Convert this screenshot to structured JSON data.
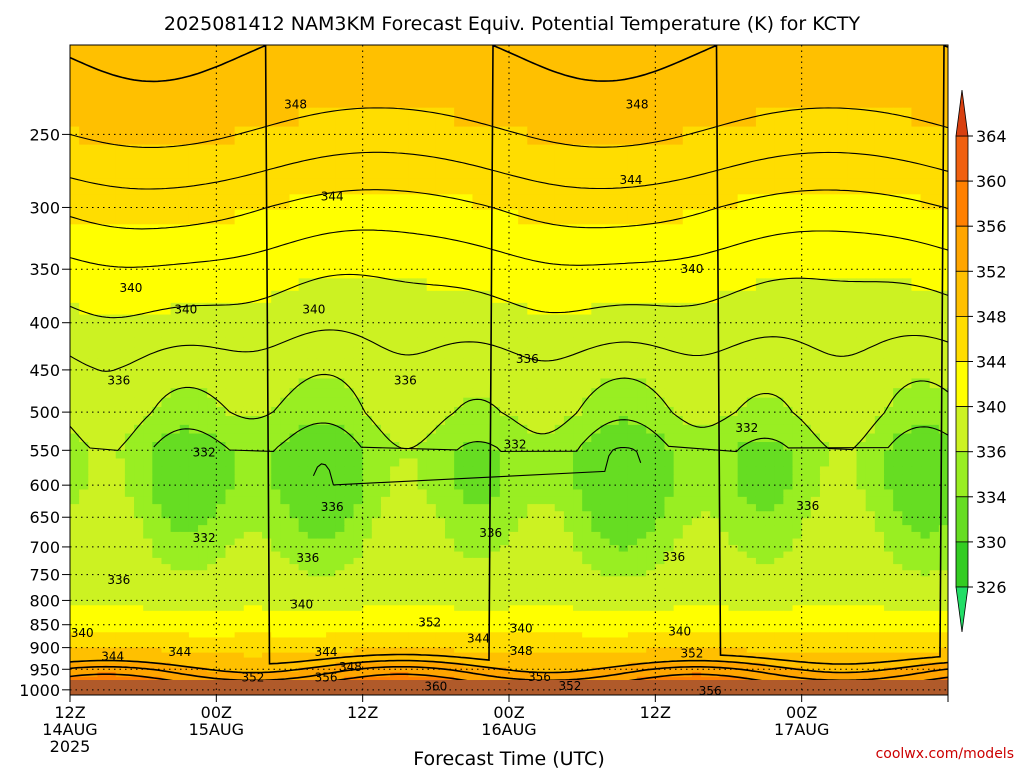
{
  "chart_data": {
    "type": "heatmap",
    "title": "2025081412 NAM3KM Forecast Equiv. Potential Temperature (K) for KCTY",
    "xlabel": "Forecast Time (UTC)",
    "ylabel": "",
    "credit": "coolwx.com/models",
    "x_hours": [
      0,
      72
    ],
    "x_ticks": [
      {
        "hour": 0,
        "line1": "12Z",
        "line2": "14AUG",
        "line3": "2025"
      },
      {
        "hour": 12,
        "line1": "00Z",
        "line2": "15AUG",
        "line3": ""
      },
      {
        "hour": 24,
        "line1": "12Z",
        "line2": "",
        "line3": ""
      },
      {
        "hour": 36,
        "line1": "00Z",
        "line2": "16AUG",
        "line3": ""
      },
      {
        "hour": 48,
        "line1": "12Z",
        "line2": "",
        "line3": ""
      },
      {
        "hour": 60,
        "line1": "00Z",
        "line2": "17AUG",
        "line3": ""
      }
    ],
    "y_pressure_range_hPa": [
      1013,
      200
    ],
    "y_log_scale": true,
    "y_ticks": [
      250,
      300,
      350,
      400,
      450,
      500,
      550,
      600,
      650,
      700,
      750,
      800,
      850,
      900,
      950,
      1000
    ],
    "grid": true,
    "colorbar": {
      "levels": [
        326,
        330,
        334,
        336,
        340,
        344,
        348,
        352,
        356,
        360,
        364
      ],
      "colors": [
        "#22dd66",
        "#33cc22",
        "#66dd22",
        "#99ee22",
        "#ccf222",
        "#ffff00",
        "#ffdd00",
        "#ffc000",
        "#ffa500",
        "#ff8000",
        "#f06010",
        "#d84010"
      ]
    },
    "profile_by_pressure": [
      {
        "p": 200,
        "thetae": 350
      },
      {
        "p": 230,
        "thetae": 349
      },
      {
        "p": 260,
        "thetae": 347
      },
      {
        "p": 300,
        "thetae": 344
      },
      {
        "p": 350,
        "thetae": 341
      },
      {
        "p": 400,
        "thetae": 339
      },
      {
        "p": 450,
        "thetae": 337
      },
      {
        "p": 500,
        "thetae": 336
      },
      {
        "p": 550,
        "thetae": 334
      },
      {
        "p": 600,
        "thetae": 334
      },
      {
        "p": 650,
        "thetae": 335
      },
      {
        "p": 700,
        "thetae": 336
      },
      {
        "p": 750,
        "thetae": 337
      },
      {
        "p": 800,
        "thetae": 339
      },
      {
        "p": 850,
        "thetae": 342
      },
      {
        "p": 900,
        "thetae": 347
      },
      {
        "p": 950,
        "thetae": 353
      },
      {
        "p": 1000,
        "thetae": 358
      }
    ],
    "contour_labels": [
      {
        "text": "348",
        "hour": 18.5,
        "p": 232
      },
      {
        "text": "348",
        "hour": 46.5,
        "p": 232
      },
      {
        "text": "344",
        "hour": 21.5,
        "p": 292
      },
      {
        "text": "344",
        "hour": 46.0,
        "p": 280
      },
      {
        "text": "340",
        "hour": 5.0,
        "p": 367
      },
      {
        "text": "340",
        "hour": 9.5,
        "p": 387
      },
      {
        "text": "340",
        "hour": 20.0,
        "p": 387
      },
      {
        "text": "340",
        "hour": 51.0,
        "p": 350
      },
      {
        "text": "336",
        "hour": 4.0,
        "p": 462
      },
      {
        "text": "336",
        "hour": 37.5,
        "p": 438
      },
      {
        "text": "336",
        "hour": 27.5,
        "p": 462
      },
      {
        "text": "336",
        "hour": 21.5,
        "p": 634
      },
      {
        "text": "336",
        "hour": 34.5,
        "p": 676
      },
      {
        "text": "336",
        "hour": 19.5,
        "p": 720
      },
      {
        "text": "336",
        "hour": 49.5,
        "p": 718
      },
      {
        "text": "336",
        "hour": 4.0,
        "p": 760
      },
      {
        "text": "336",
        "hour": 60.5,
        "p": 632
      },
      {
        "text": "332",
        "hour": 11.0,
        "p": 553
      },
      {
        "text": "332",
        "hour": 11.0,
        "p": 685
      },
      {
        "text": "332",
        "hour": 36.5,
        "p": 542
      },
      {
        "text": "332",
        "hour": 55.5,
        "p": 520
      },
      {
        "text": "340",
        "hour": 19.0,
        "p": 808
      },
      {
        "text": "340",
        "hour": 1.0,
        "p": 868
      },
      {
        "text": "344",
        "hour": 3.5,
        "p": 920
      },
      {
        "text": "344",
        "hour": 9.0,
        "p": 910
      },
      {
        "text": "344",
        "hour": 21.0,
        "p": 910
      },
      {
        "text": "344",
        "hour": 33.5,
        "p": 880
      },
      {
        "text": "340",
        "hour": 37.0,
        "p": 858
      },
      {
        "text": "340",
        "hour": 50.0,
        "p": 865
      },
      {
        "text": "352",
        "hour": 29.5,
        "p": 845
      },
      {
        "text": "348",
        "hour": 23.0,
        "p": 945
      },
      {
        "text": "348",
        "hour": 37.0,
        "p": 908
      },
      {
        "text": "352",
        "hour": 15.0,
        "p": 970
      },
      {
        "text": "352",
        "hour": 51.0,
        "p": 913
      },
      {
        "text": "356",
        "hour": 21.0,
        "p": 970
      },
      {
        "text": "356",
        "hour": 38.5,
        "p": 968
      },
      {
        "text": "352",
        "hour": 41.0,
        "p": 990
      },
      {
        "text": "356",
        "hour": 52.5,
        "p": 1003
      },
      {
        "text": "360",
        "hour": 30.0,
        "p": 992
      }
    ]
  }
}
